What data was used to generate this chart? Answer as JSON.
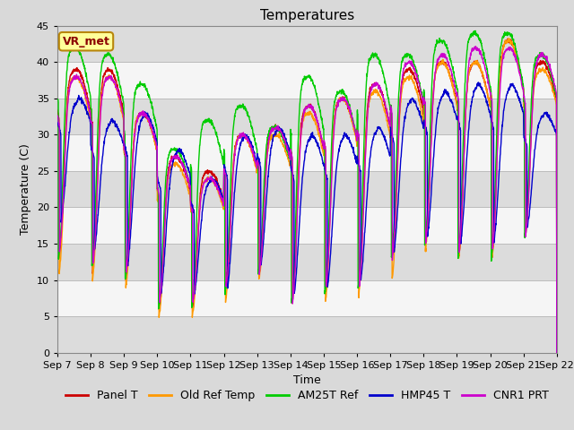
{
  "title": "Temperatures",
  "xlabel": "Time",
  "ylabel": "Temperature (C)",
  "ylim": [
    0,
    45
  ],
  "series_colors": {
    "Panel T": "#cc0000",
    "Old Ref Temp": "#ff9900",
    "AM25T Ref": "#00cc00",
    "HMP45 T": "#0000cc",
    "CNR1 PRT": "#cc00cc"
  },
  "series_order": [
    "Panel T",
    "Old Ref Temp",
    "AM25T Ref",
    "HMP45 T",
    "CNR1 PRT"
  ],
  "annotation_text": "VR_met",
  "annotation_color": "#8b0000",
  "annotation_bg": "#ffff99",
  "annotation_edge": "#b8860b",
  "fig_bg": "#d9d9d9",
  "plot_bg_light": "#f0f0f0",
  "plot_bg_dark": "#dcdcdc",
  "grid_band_light": "#f5f5f5",
  "grid_band_dark": "#e0e0e0",
  "title_fontsize": 11,
  "axis_label_fontsize": 9,
  "tick_label_fontsize": 8,
  "legend_fontsize": 9,
  "n_days": 15,
  "x_tick_labels": [
    "Sep 7",
    "Sep 8",
    "Sep 9",
    "Sep 10",
    "Sep 11",
    "Sep 12",
    "Sep 13",
    "Sep 14",
    "Sep 15",
    "Sep 16",
    "Sep 17",
    "Sep 18",
    "Sep 19",
    "Sep 20",
    "Sep 21",
    "Sep 22"
  ],
  "peak_heights": {
    "Panel T": [
      39,
      39,
      33,
      27,
      25,
      30,
      31,
      34,
      35,
      37,
      39,
      40,
      40,
      43,
      40
    ],
    "Old Ref Temp": [
      38,
      38,
      33,
      26,
      24,
      30,
      30,
      33,
      35,
      36,
      38,
      40,
      40,
      43,
      39
    ],
    "AM25T Ref": [
      42,
      41,
      37,
      28,
      32,
      34,
      31,
      38,
      36,
      41,
      41,
      43,
      44,
      44,
      41
    ],
    "HMP45 T": [
      35,
      32,
      33,
      28,
      24,
      30,
      31,
      30,
      30,
      31,
      35,
      36,
      37,
      37,
      33
    ],
    "CNR1 PRT": [
      38,
      38,
      33,
      27,
      24,
      30,
      31,
      34,
      35,
      37,
      40,
      41,
      42,
      42,
      41
    ]
  },
  "trough_heights": {
    "Panel T": [
      13,
      11,
      10,
      6,
      6,
      9,
      11,
      7,
      9,
      10,
      13,
      15,
      13,
      13,
      16
    ],
    "Old Ref Temp": [
      11,
      10,
      9,
      5,
      5,
      7,
      10,
      7,
      7,
      8,
      10,
      14,
      13,
      13,
      17
    ],
    "AM25T Ref": [
      13,
      12,
      10,
      6,
      6,
      8,
      11,
      7,
      8,
      9,
      13,
      15,
      13,
      13,
      16
    ],
    "HMP45 T": [
      18,
      14,
      12,
      8,
      8,
      9,
      12,
      8,
      9,
      10,
      14,
      16,
      15,
      15,
      17
    ],
    "CNR1 PRT": [
      14,
      12,
      11,
      7,
      7,
      9,
      11,
      7,
      9,
      9,
      13,
      15,
      14,
      14,
      16
    ]
  },
  "pts_per_day": 144
}
